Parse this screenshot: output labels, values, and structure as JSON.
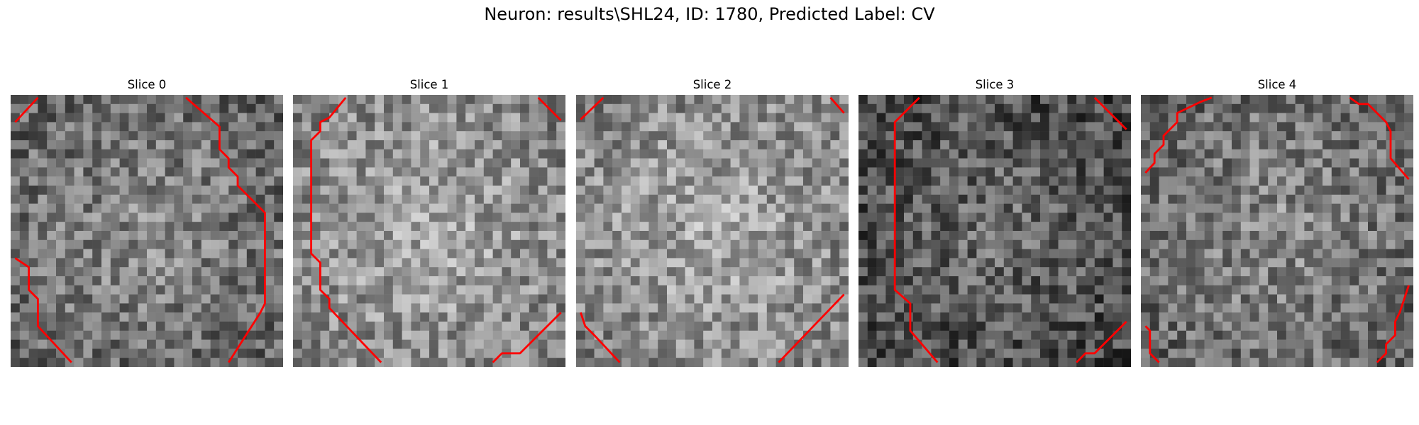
{
  "figure": {
    "title": "Neuron: results\\SHL24, ID: 1780, Predicted Label: CV"
  },
  "panels": [
    {
      "title": "Slice 0",
      "tone": "medium",
      "seed": 11
    },
    {
      "title": "Slice 1",
      "tone": "bright",
      "seed": 23
    },
    {
      "title": "Slice 2",
      "tone": "bright",
      "seed": 37
    },
    {
      "title": "Slice 3",
      "tone": "dark",
      "seed": 41
    },
    {
      "title": "Slice 4",
      "tone": "medium",
      "seed": 53
    }
  ],
  "style": {
    "contour_color": "#ff0000",
    "colormap": "grayscale"
  }
}
